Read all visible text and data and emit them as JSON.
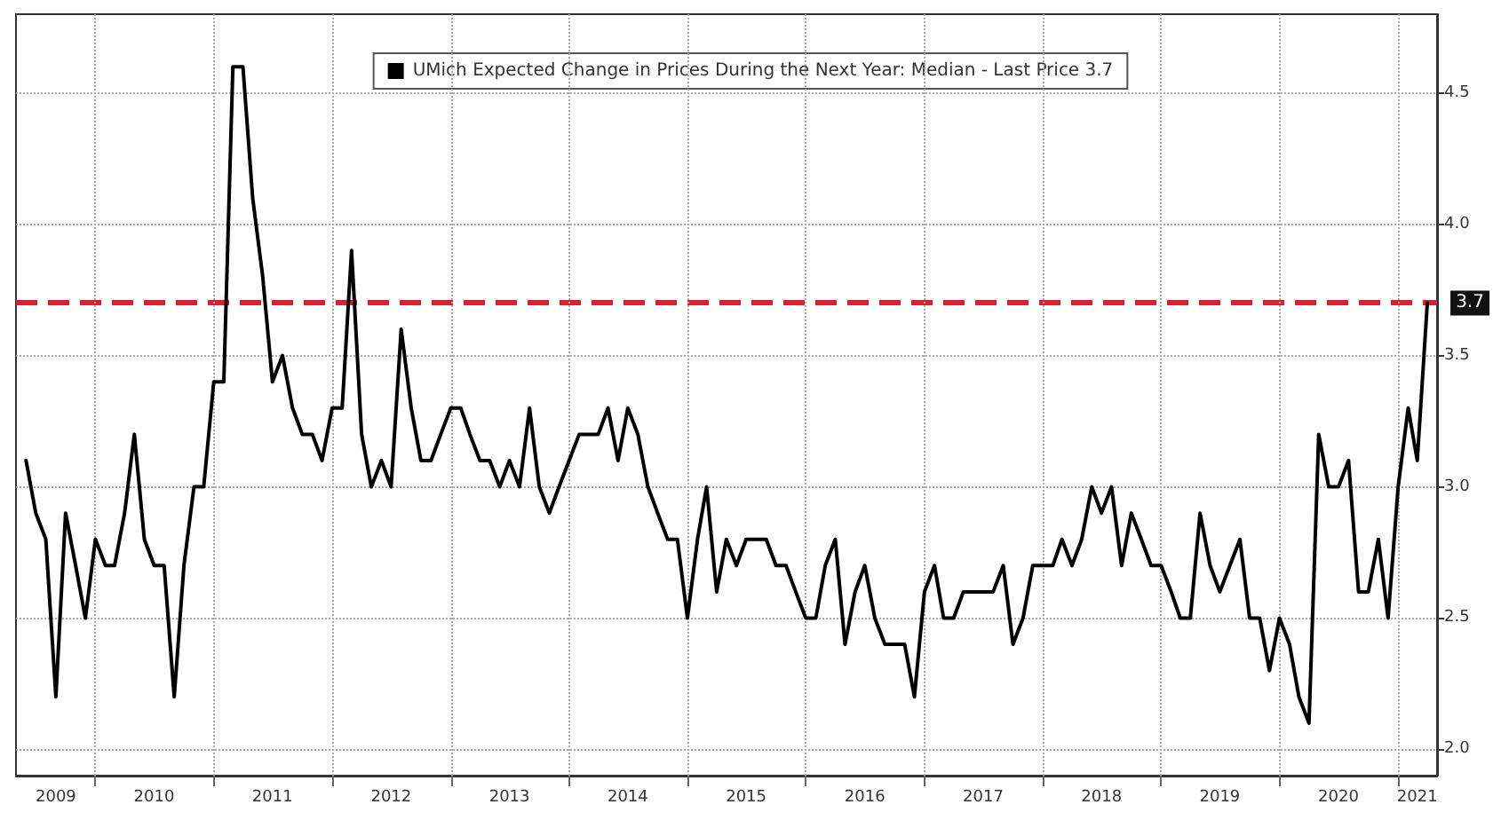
{
  "chart_data": {
    "type": "line",
    "x": [
      "2009-06",
      "2009-07",
      "2009-08",
      "2009-09",
      "2009-10",
      "2009-11",
      "2009-12",
      "2010-01",
      "2010-02",
      "2010-03",
      "2010-04",
      "2010-05",
      "2010-06",
      "2010-07",
      "2010-08",
      "2010-09",
      "2010-10",
      "2010-11",
      "2010-12",
      "2011-01",
      "2011-02",
      "2011-03",
      "2011-04",
      "2011-05",
      "2011-06",
      "2011-07",
      "2011-08",
      "2011-09",
      "2011-10",
      "2011-11",
      "2011-12",
      "2012-01",
      "2012-02",
      "2012-03",
      "2012-04",
      "2012-05",
      "2012-06",
      "2012-07",
      "2012-08",
      "2012-09",
      "2012-10",
      "2012-11",
      "2012-12",
      "2013-01",
      "2013-02",
      "2013-03",
      "2013-04",
      "2013-05",
      "2013-06",
      "2013-07",
      "2013-08",
      "2013-09",
      "2013-10",
      "2013-11",
      "2013-12",
      "2014-01",
      "2014-02",
      "2014-03",
      "2014-04",
      "2014-05",
      "2014-06",
      "2014-07",
      "2014-08",
      "2014-09",
      "2014-10",
      "2014-11",
      "2014-12",
      "2015-01",
      "2015-02",
      "2015-03",
      "2015-04",
      "2015-05",
      "2015-06",
      "2015-07",
      "2015-08",
      "2015-09",
      "2015-10",
      "2015-11",
      "2015-12",
      "2016-01",
      "2016-02",
      "2016-03",
      "2016-04",
      "2016-05",
      "2016-06",
      "2016-07",
      "2016-08",
      "2016-09",
      "2016-10",
      "2016-11",
      "2016-12",
      "2017-01",
      "2017-02",
      "2017-03",
      "2017-04",
      "2017-05",
      "2017-06",
      "2017-07",
      "2017-08",
      "2017-09",
      "2017-10",
      "2017-11",
      "2017-12",
      "2018-01",
      "2018-02",
      "2018-03",
      "2018-04",
      "2018-05",
      "2018-06",
      "2018-07",
      "2018-08",
      "2018-09",
      "2018-10",
      "2018-11",
      "2018-12",
      "2019-01",
      "2019-02",
      "2019-03",
      "2019-04",
      "2019-05",
      "2019-06",
      "2019-07",
      "2019-08",
      "2019-09",
      "2019-10",
      "2019-11",
      "2019-12",
      "2020-01",
      "2020-02",
      "2020-03",
      "2020-04",
      "2020-05",
      "2020-06",
      "2020-07",
      "2020-08",
      "2020-09",
      "2020-10",
      "2020-11",
      "2020-12",
      "2021-01",
      "2021-02",
      "2021-03",
      "2021-04"
    ],
    "series": [
      {
        "name": "UMich Expected Change in Prices During the Next Year: Median - Last Price 3.7",
        "color": "#000000",
        "values": [
          3.1,
          2.9,
          2.8,
          2.2,
          2.9,
          2.7,
          2.5,
          2.8,
          2.7,
          2.7,
          2.9,
          3.2,
          2.8,
          2.7,
          2.7,
          2.2,
          2.7,
          3.0,
          3.0,
          3.4,
          3.4,
          4.6,
          4.6,
          4.1,
          3.8,
          3.4,
          3.5,
          3.3,
          3.2,
          3.2,
          3.1,
          3.3,
          3.3,
          3.9,
          3.2,
          3.0,
          3.1,
          3.0,
          3.6,
          3.3,
          3.1,
          3.1,
          3.2,
          3.3,
          3.3,
          3.2,
          3.1,
          3.1,
          3.0,
          3.1,
          3.0,
          3.3,
          3.0,
          2.9,
          3.0,
          3.1,
          3.2,
          3.2,
          3.2,
          3.3,
          3.1,
          3.3,
          3.2,
          3.0,
          2.9,
          2.8,
          2.8,
          2.5,
          2.8,
          3.0,
          2.6,
          2.8,
          2.7,
          2.8,
          2.8,
          2.8,
          2.7,
          2.7,
          2.6,
          2.5,
          2.5,
          2.7,
          2.8,
          2.4,
          2.6,
          2.7,
          2.5,
          2.4,
          2.4,
          2.4,
          2.2,
          2.6,
          2.7,
          2.5,
          2.5,
          2.6,
          2.6,
          2.6,
          2.6,
          2.7,
          2.4,
          2.5,
          2.7,
          2.7,
          2.7,
          2.8,
          2.7,
          2.8,
          3.0,
          2.9,
          3.0,
          2.7,
          2.9,
          2.8,
          2.7,
          2.7,
          2.6,
          2.5,
          2.5,
          2.9,
          2.7,
          2.6,
          2.7,
          2.8,
          2.5,
          2.5,
          2.3,
          2.5,
          2.4,
          2.2,
          2.1,
          3.2,
          3.0,
          3.0,
          3.1,
          2.6,
          2.6,
          2.8,
          2.5,
          3.0,
          3.3,
          3.1,
          3.7
        ]
      }
    ],
    "xlim": [
      "2009-05",
      "2021-05"
    ],
    "xticks": [
      {
        "value": "2009-09",
        "label": "2009"
      },
      {
        "value": "2010",
        "label": null
      },
      {
        "value": "2010-07",
        "label": "2010"
      },
      {
        "value": "2011",
        "label": null
      },
      {
        "value": "2011-07",
        "label": "2011"
      },
      {
        "value": "2012",
        "label": null
      },
      {
        "value": "2012-07",
        "label": "2012"
      },
      {
        "value": "2013",
        "label": null
      },
      {
        "value": "2013-07",
        "label": "2013"
      },
      {
        "value": "2014",
        "label": null
      },
      {
        "value": "2014-07",
        "label": "2014"
      },
      {
        "value": "2015",
        "label": null
      },
      {
        "value": "2015-07",
        "label": "2015"
      },
      {
        "value": "2016",
        "label": null
      },
      {
        "value": "2016-07",
        "label": "2016"
      },
      {
        "value": "2017",
        "label": null
      },
      {
        "value": "2017-07",
        "label": "2017"
      },
      {
        "value": "2018",
        "label": null
      },
      {
        "value": "2018-07",
        "label": "2018"
      },
      {
        "value": "2019",
        "label": null
      },
      {
        "value": "2019-07",
        "label": "2019"
      },
      {
        "value": "2020",
        "label": null
      },
      {
        "value": "2020-07",
        "label": "2020"
      },
      {
        "value": "2021",
        "label": null
      },
      {
        "value": "2021-03",
        "label": "2021"
      }
    ],
    "ylim": [
      1.9,
      4.8
    ],
    "yticks": [
      {
        "value": 2.0,
        "label": "2.0"
      },
      {
        "value": 2.5,
        "label": "2.5"
      },
      {
        "value": 3.0,
        "label": "3.0"
      },
      {
        "value": 3.5,
        "label": "3.5"
      },
      {
        "value": 4.0,
        "label": "4.0"
      },
      {
        "value": 4.5,
        "label": "4.5"
      }
    ],
    "ref_lines": [
      {
        "axis": "y",
        "value": 3.7,
        "color": "#d9202c",
        "line_style": "dashed"
      }
    ],
    "annotations": [
      {
        "text": "3.7",
        "x": "2021-04",
        "y": 3.7
      }
    ],
    "grid": true,
    "legend": "top",
    "marker": "none",
    "line_style": "solid"
  }
}
